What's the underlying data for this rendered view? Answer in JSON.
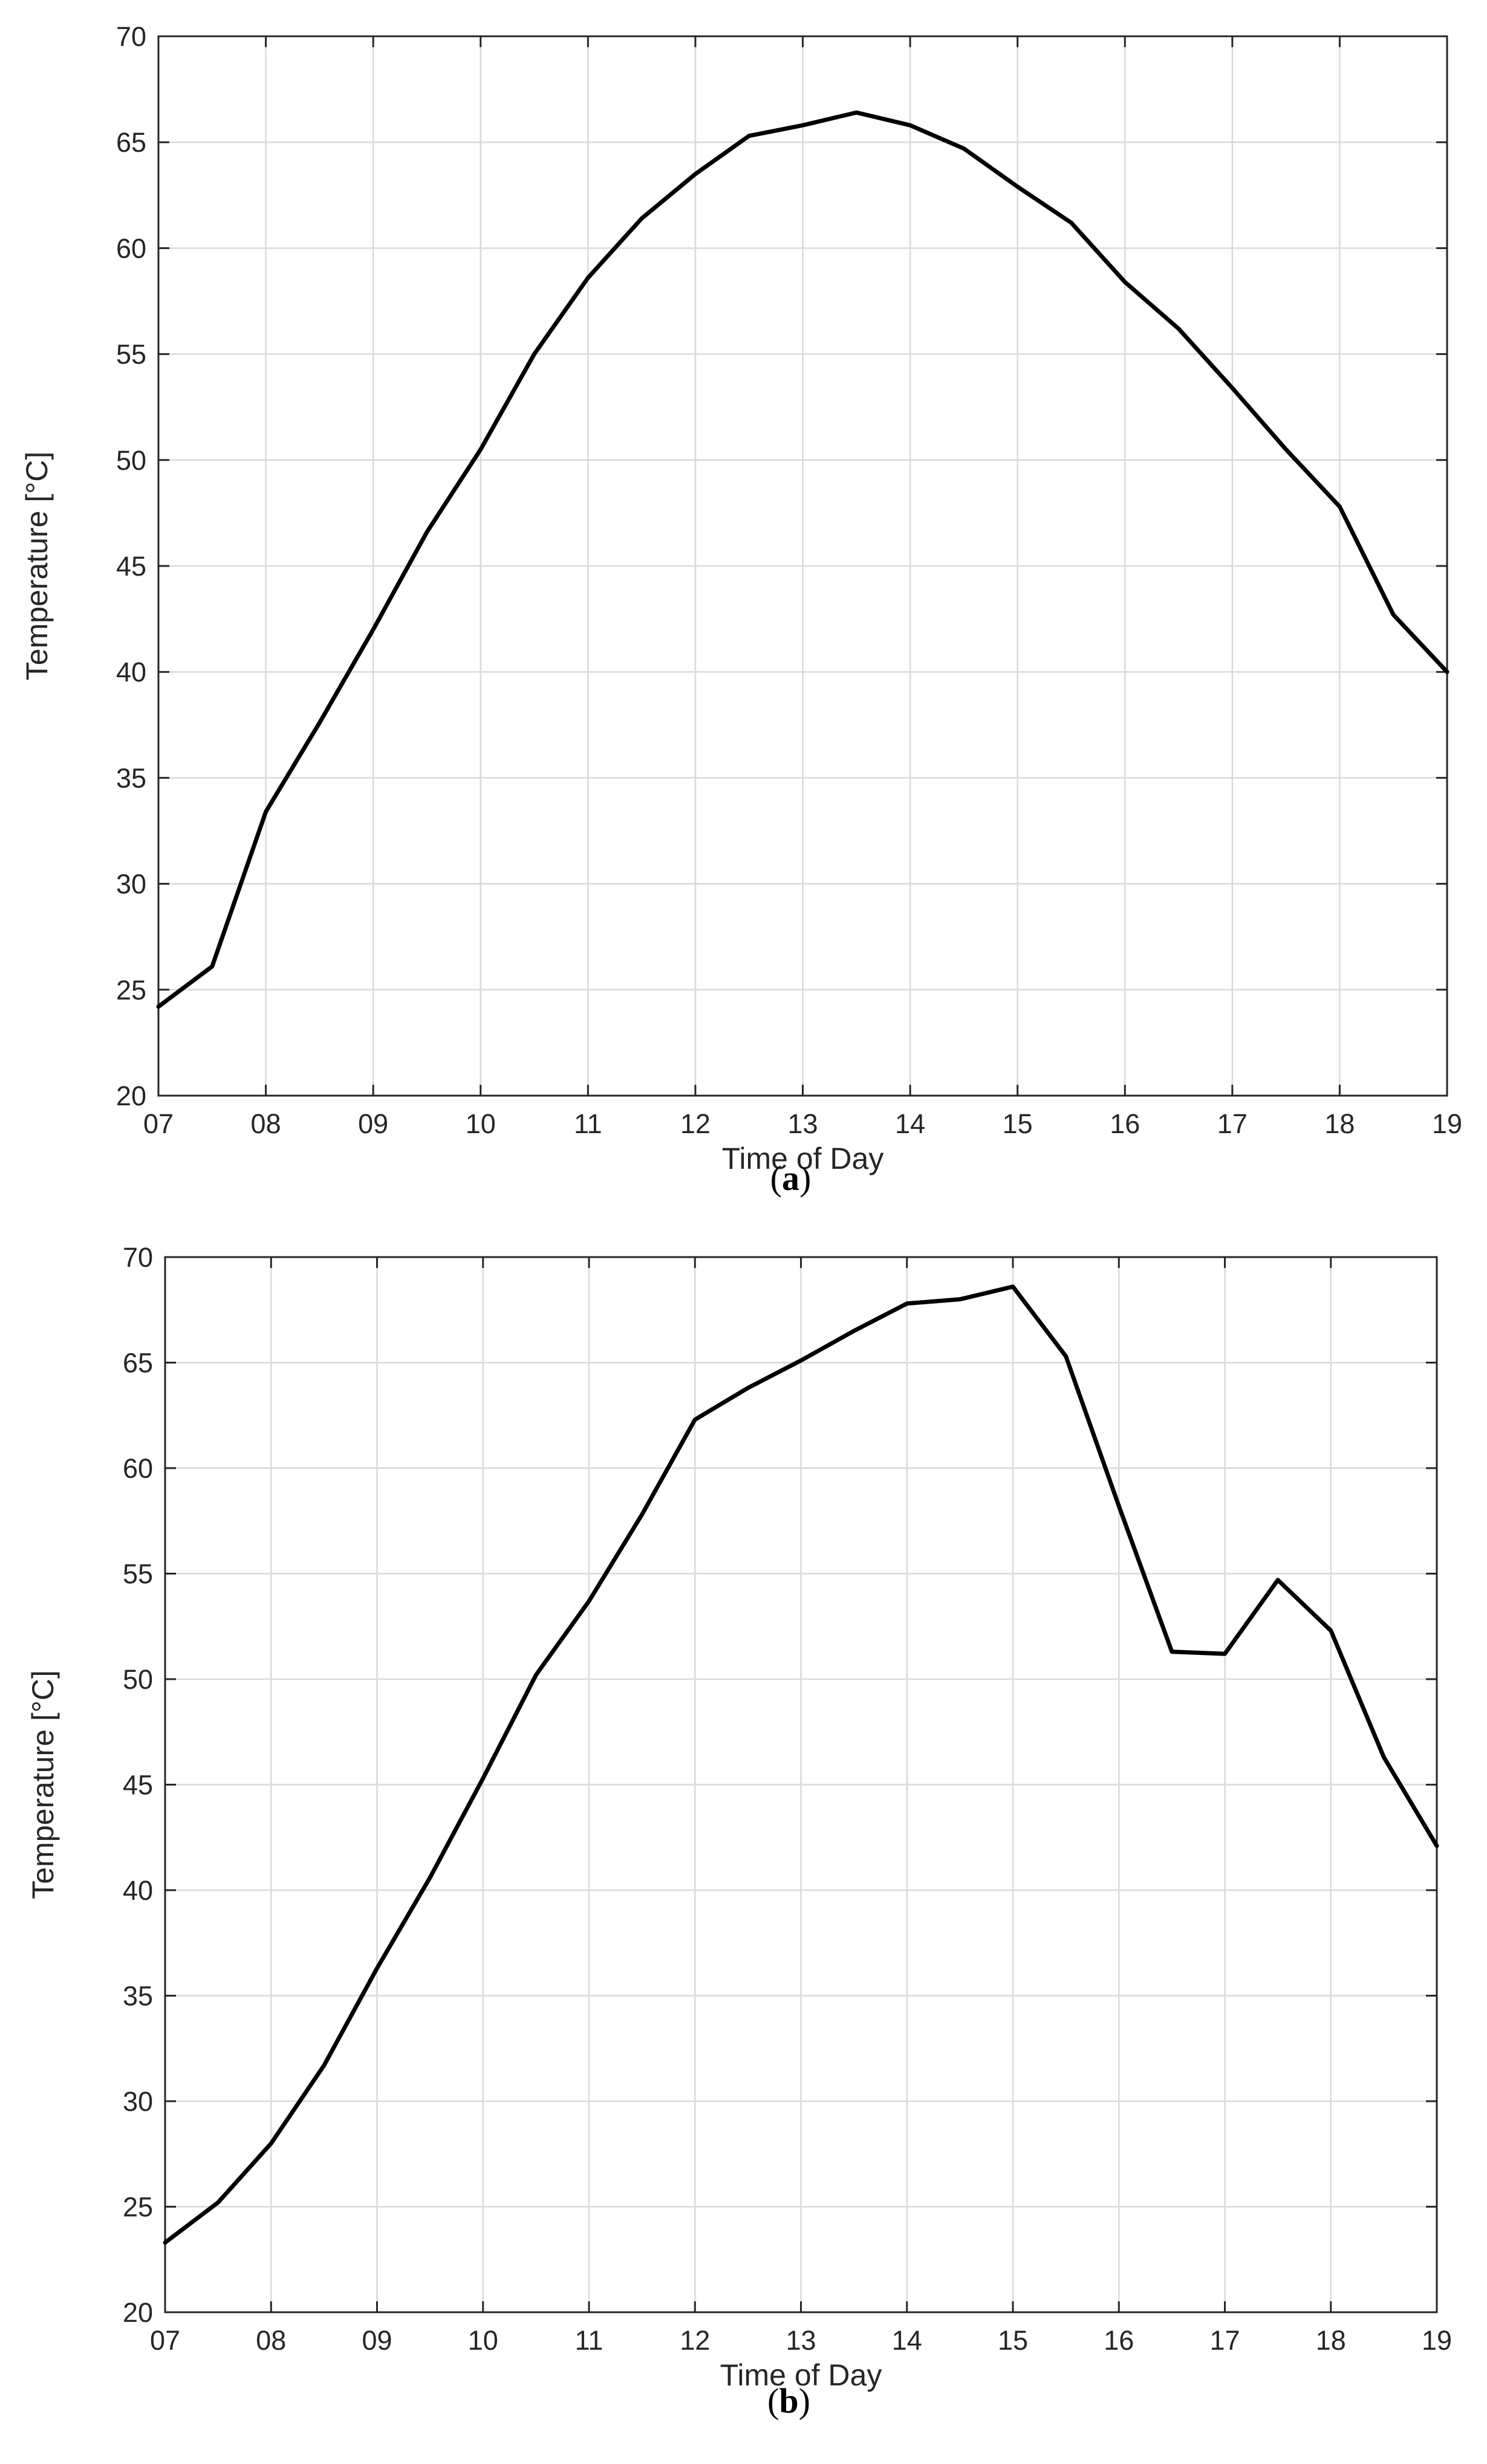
{
  "chart_data": [
    {
      "type": "line",
      "panel": "a",
      "caption": {
        "open": "(",
        "letter": "a",
        "close": ")"
      },
      "xlabel": "Time of Day",
      "ylabel": "Temperature [°C]",
      "xlim": [
        7,
        19
      ],
      "ylim": [
        20,
        70
      ],
      "grid": true,
      "x_ticks": [
        7,
        8,
        9,
        10,
        11,
        12,
        13,
        14,
        15,
        16,
        17,
        18,
        19
      ],
      "x_tick_labels": [
        "07",
        "08",
        "09",
        "10",
        "11",
        "12",
        "13",
        "14",
        "15",
        "16",
        "17",
        "18",
        "19"
      ],
      "y_ticks": [
        20,
        25,
        30,
        35,
        40,
        45,
        50,
        55,
        60,
        65,
        70
      ],
      "y_tick_labels": [
        "20",
        "25",
        "30",
        "35",
        "40",
        "45",
        "50",
        "55",
        "60",
        "65",
        "70"
      ],
      "series": [
        {
          "color": "#000000",
          "x": [
            7,
            7.5,
            8,
            8.5,
            9,
            9.5,
            10,
            10.5,
            11,
            11.5,
            12,
            12.5,
            13,
            13.5,
            14,
            14.5,
            15,
            15.5,
            16,
            16.5,
            17,
            17.5,
            18,
            18.5,
            19
          ],
          "values": [
            24.2,
            26.1,
            33.4,
            37.6,
            42.0,
            46.6,
            50.5,
            55.0,
            58.6,
            61.4,
            63.5,
            65.3,
            65.8,
            66.4,
            65.8,
            64.7,
            62.9,
            61.2,
            58.4,
            56.2,
            53.4,
            50.5,
            47.8,
            42.7,
            40.0
          ]
        }
      ]
    },
    {
      "type": "line",
      "panel": "b",
      "caption": {
        "open": "(",
        "letter": "b",
        "close": ")"
      },
      "xlabel": "Time of Day",
      "ylabel": "Temperature [°C]",
      "xlim": [
        7,
        19
      ],
      "ylim": [
        20,
        70
      ],
      "grid": true,
      "x_ticks": [
        7,
        8,
        9,
        10,
        11,
        12,
        13,
        14,
        15,
        16,
        17,
        18,
        19
      ],
      "x_tick_labels": [
        "07",
        "08",
        "09",
        "10",
        "11",
        "12",
        "13",
        "14",
        "15",
        "16",
        "17",
        "18",
        "19"
      ],
      "y_ticks": [
        20,
        25,
        30,
        35,
        40,
        45,
        50,
        55,
        60,
        65,
        70
      ],
      "y_tick_labels": [
        "20",
        "25",
        "30",
        "35",
        "40",
        "45",
        "50",
        "55",
        "60",
        "65",
        "70"
      ],
      "series": [
        {
          "color": "#000000",
          "x": [
            7,
            7.5,
            8,
            8.5,
            9,
            9.5,
            10,
            10.5,
            11,
            11.5,
            12,
            12.5,
            13,
            13.5,
            14,
            14.5,
            15,
            15.5,
            16,
            16.5,
            17,
            17.5,
            18,
            18.5,
            19
          ],
          "values": [
            23.3,
            25.2,
            28.0,
            31.7,
            36.3,
            40.6,
            45.3,
            50.2,
            53.7,
            57.8,
            62.3,
            63.8,
            65.1,
            66.5,
            67.8,
            68.0,
            68.6,
            65.3,
            58.2,
            51.3,
            51.2,
            54.7,
            52.3,
            46.3,
            42.1
          ]
        }
      ]
    }
  ]
}
